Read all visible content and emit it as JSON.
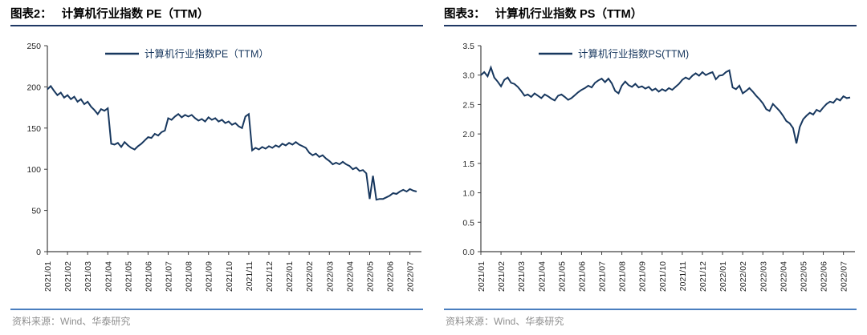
{
  "colors": {
    "line": "#17375E",
    "title_underline": "#1F3864",
    "bottom_rule": "#4A7EBF",
    "axis": "#404040",
    "tick_text": "#262626",
    "source_text": "#8F8F8F"
  },
  "panels": [
    {
      "figure_label": "图表2：",
      "figure_title": "计算机行业指数 PE（TTM）",
      "source": "资料来源：Wind、华泰研究"
    },
    {
      "figure_label": "图表3：",
      "figure_title": "计算机行业指数 PS（TTM）",
      "source": "资料来源：Wind、华泰研究"
    }
  ],
  "chart_data": [
    {
      "type": "line",
      "title": "图表2： 计算机行业指数 PE（TTM）",
      "legend": [
        "计算机行业指数PE（TTM）"
      ],
      "legend_position": "top-center",
      "line_color": "#17375E",
      "ylim": [
        0,
        250
      ],
      "y_tick_labels": [
        "0",
        "50",
        "100",
        "150",
        "200",
        "250"
      ],
      "grid": false,
      "x_tick_labels": [
        "2021/01",
        "2021/02",
        "2021/03",
        "2021/04",
        "2021/05",
        "2021/06",
        "2021/07",
        "2021/08",
        "2021/09",
        "2021/10",
        "2021/11",
        "2021/12",
        "2022/01",
        "2022/02",
        "2022/03",
        "2022/04",
        "2022/05",
        "2022/06",
        "2022/07"
      ],
      "points_per_month": 6,
      "values": [
        197,
        201,
        195,
        190,
        193,
        187,
        190,
        185,
        188,
        182,
        185,
        179,
        182,
        176,
        172,
        167,
        173,
        171,
        174,
        131,
        130,
        132,
        127,
        133,
        129,
        126,
        124,
        128,
        131,
        135,
        139,
        138,
        143,
        141,
        145,
        147,
        162,
        160,
        164,
        167,
        163,
        166,
        164,
        166,
        162,
        159,
        161,
        158,
        163,
        160,
        162,
        158,
        160,
        156,
        158,
        154,
        156,
        152,
        150,
        164,
        167,
        123,
        126,
        124,
        127,
        125,
        128,
        126,
        129,
        127,
        131,
        129,
        132,
        130,
        133,
        130,
        128,
        126,
        120,
        117,
        119,
        115,
        117,
        113,
        110,
        106,
        108,
        106,
        109,
        106,
        104,
        100,
        102,
        98,
        99,
        95,
        64,
        92,
        63,
        64,
        64,
        66,
        68,
        71,
        70,
        73,
        75,
        73,
        76,
        74,
        73
      ]
    },
    {
      "type": "line",
      "title": "图表3： 计算机行业指数 PS（TTM）",
      "legend": [
        "计算机行业指数PS(TTM)"
      ],
      "legend_position": "top-center",
      "line_color": "#17375E",
      "ylim": [
        0,
        3.5
      ],
      "y_tick_labels": [
        "0.0",
        "0.5",
        "1.0",
        "1.5",
        "2.0",
        "2.5",
        "3.0",
        "3.5"
      ],
      "grid": false,
      "x_tick_labels": [
        "2021/01",
        "2021/02",
        "2021/03",
        "2021/04",
        "2021/05",
        "2021/06",
        "2021/07",
        "2021/08",
        "2021/09",
        "2021/10",
        "2021/11",
        "2021/12",
        "2022/01",
        "2022/02",
        "2022/03",
        "2022/04",
        "2022/05",
        "2022/06",
        "2022/07"
      ],
      "points_per_month": 6,
      "values": [
        3.0,
        3.05,
        2.98,
        3.13,
        2.96,
        2.89,
        2.81,
        2.92,
        2.96,
        2.87,
        2.85,
        2.8,
        2.73,
        2.65,
        2.67,
        2.63,
        2.69,
        2.65,
        2.61,
        2.67,
        2.64,
        2.6,
        2.57,
        2.65,
        2.67,
        2.63,
        2.58,
        2.61,
        2.66,
        2.71,
        2.75,
        2.78,
        2.82,
        2.79,
        2.87,
        2.91,
        2.94,
        2.88,
        2.94,
        2.86,
        2.73,
        2.69,
        2.82,
        2.89,
        2.83,
        2.8,
        2.85,
        2.79,
        2.81,
        2.77,
        2.8,
        2.74,
        2.77,
        2.72,
        2.76,
        2.73,
        2.78,
        2.75,
        2.8,
        2.85,
        2.92,
        2.96,
        2.93,
        2.99,
        3.03,
        2.99,
        3.05,
        3.0,
        3.03,
        3.05,
        2.93,
        2.99,
        3.0,
        3.05,
        3.08,
        2.79,
        2.76,
        2.82,
        2.69,
        2.73,
        2.78,
        2.72,
        2.65,
        2.59,
        2.52,
        2.42,
        2.39,
        2.51,
        2.45,
        2.39,
        2.31,
        2.22,
        2.18,
        2.1,
        1.84,
        2.12,
        2.25,
        2.31,
        2.36,
        2.33,
        2.41,
        2.38,
        2.45,
        2.51,
        2.55,
        2.53,
        2.6,
        2.57,
        2.64,
        2.61,
        2.62
      ]
    }
  ]
}
